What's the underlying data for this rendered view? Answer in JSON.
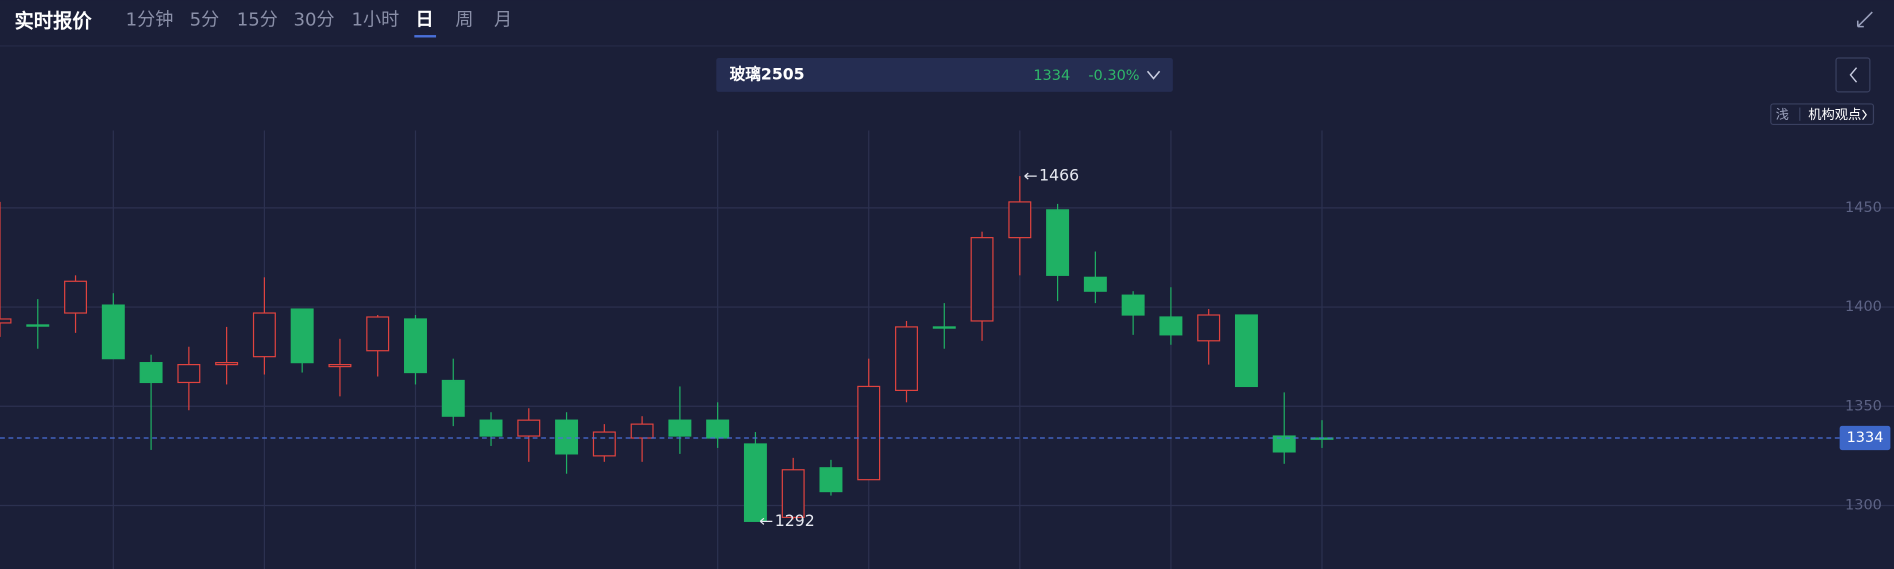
{
  "header": {
    "title": "实时报价",
    "tabs": [
      "1分钟",
      "5分",
      "15分",
      "30分",
      "1小时",
      "日",
      "周",
      "月"
    ],
    "active_tab": "日"
  },
  "contract": {
    "name": "玻璃2505",
    "price": 1334,
    "change": "-0.30%"
  },
  "toolbar": {
    "theme": "浅",
    "opinion": "机构观点"
  },
  "chart_data": {
    "type": "candlestick",
    "categories": [
      null,
      null,
      null,
      null,
      null,
      null,
      null,
      null,
      null,
      null,
      null,
      null,
      null,
      null,
      null,
      null,
      null,
      null,
      null,
      null,
      null,
      null,
      null,
      null,
      null,
      null,
      null,
      null,
      null,
      null,
      null,
      null,
      null,
      null,
      null,
      null
    ],
    "open": [
      1392,
      1391,
      1397,
      1401,
      1372,
      1362,
      1371,
      1375,
      1399,
      1370,
      1378,
      1394,
      1363,
      1343,
      1335,
      1343,
      1325,
      1334,
      1343,
      1343,
      1331,
      1294,
      1319,
      1313,
      1358,
      1390,
      1393,
      1435,
      1449,
      1415,
      1406,
      1395,
      1383,
      1396,
      1335,
      1334
    ],
    "high": [
      1453,
      1404,
      1416,
      1407,
      1376,
      1380,
      1390,
      1415,
      1399,
      1384,
      1396,
      1396,
      1374,
      1347,
      1349,
      1347,
      1341,
      1345,
      1360,
      1352,
      1337,
      1324,
      1323,
      1374,
      1393,
      1402,
      1438,
      1466,
      1452,
      1428,
      1408,
      1410,
      1399,
      1396,
      1357,
      1343
    ],
    "low": [
      1385,
      1379,
      1387,
      1374,
      1328,
      1348,
      1361,
      1366,
      1367,
      1355,
      1365,
      1361,
      1340,
      1330,
      1322,
      1316,
      1322,
      1322,
      1326,
      1329,
      1292,
      1293,
      1305,
      1313,
      1352,
      1379,
      1383,
      1416,
      1403,
      1402,
      1386,
      1381,
      1371,
      1360,
      1321,
      1329
    ],
    "close": [
      1394,
      1391,
      1413,
      1374,
      1362,
      1371,
      1372,
      1397,
      1372,
      1371,
      1395,
      1367,
      1345,
      1335,
      1343,
      1326,
      1337,
      1341,
      1335,
      1334,
      1292,
      1318,
      1307,
      1360,
      1390,
      1390,
      1435,
      1453,
      1416,
      1408,
      1396,
      1386,
      1396,
      1360,
      1327,
      1334
    ],
    "up_color": "#e0433f",
    "down_color": "#1fb164",
    "ylim": [
      1268,
      1489
    ],
    "yticks": [
      1300,
      1350,
      1400,
      1450
    ],
    "grid": true,
    "vgrid_categories": [
      3,
      7,
      11,
      19,
      23,
      27,
      31,
      35
    ],
    "last_price": 1334,
    "high_label": 1466,
    "low_label": 1292
  }
}
